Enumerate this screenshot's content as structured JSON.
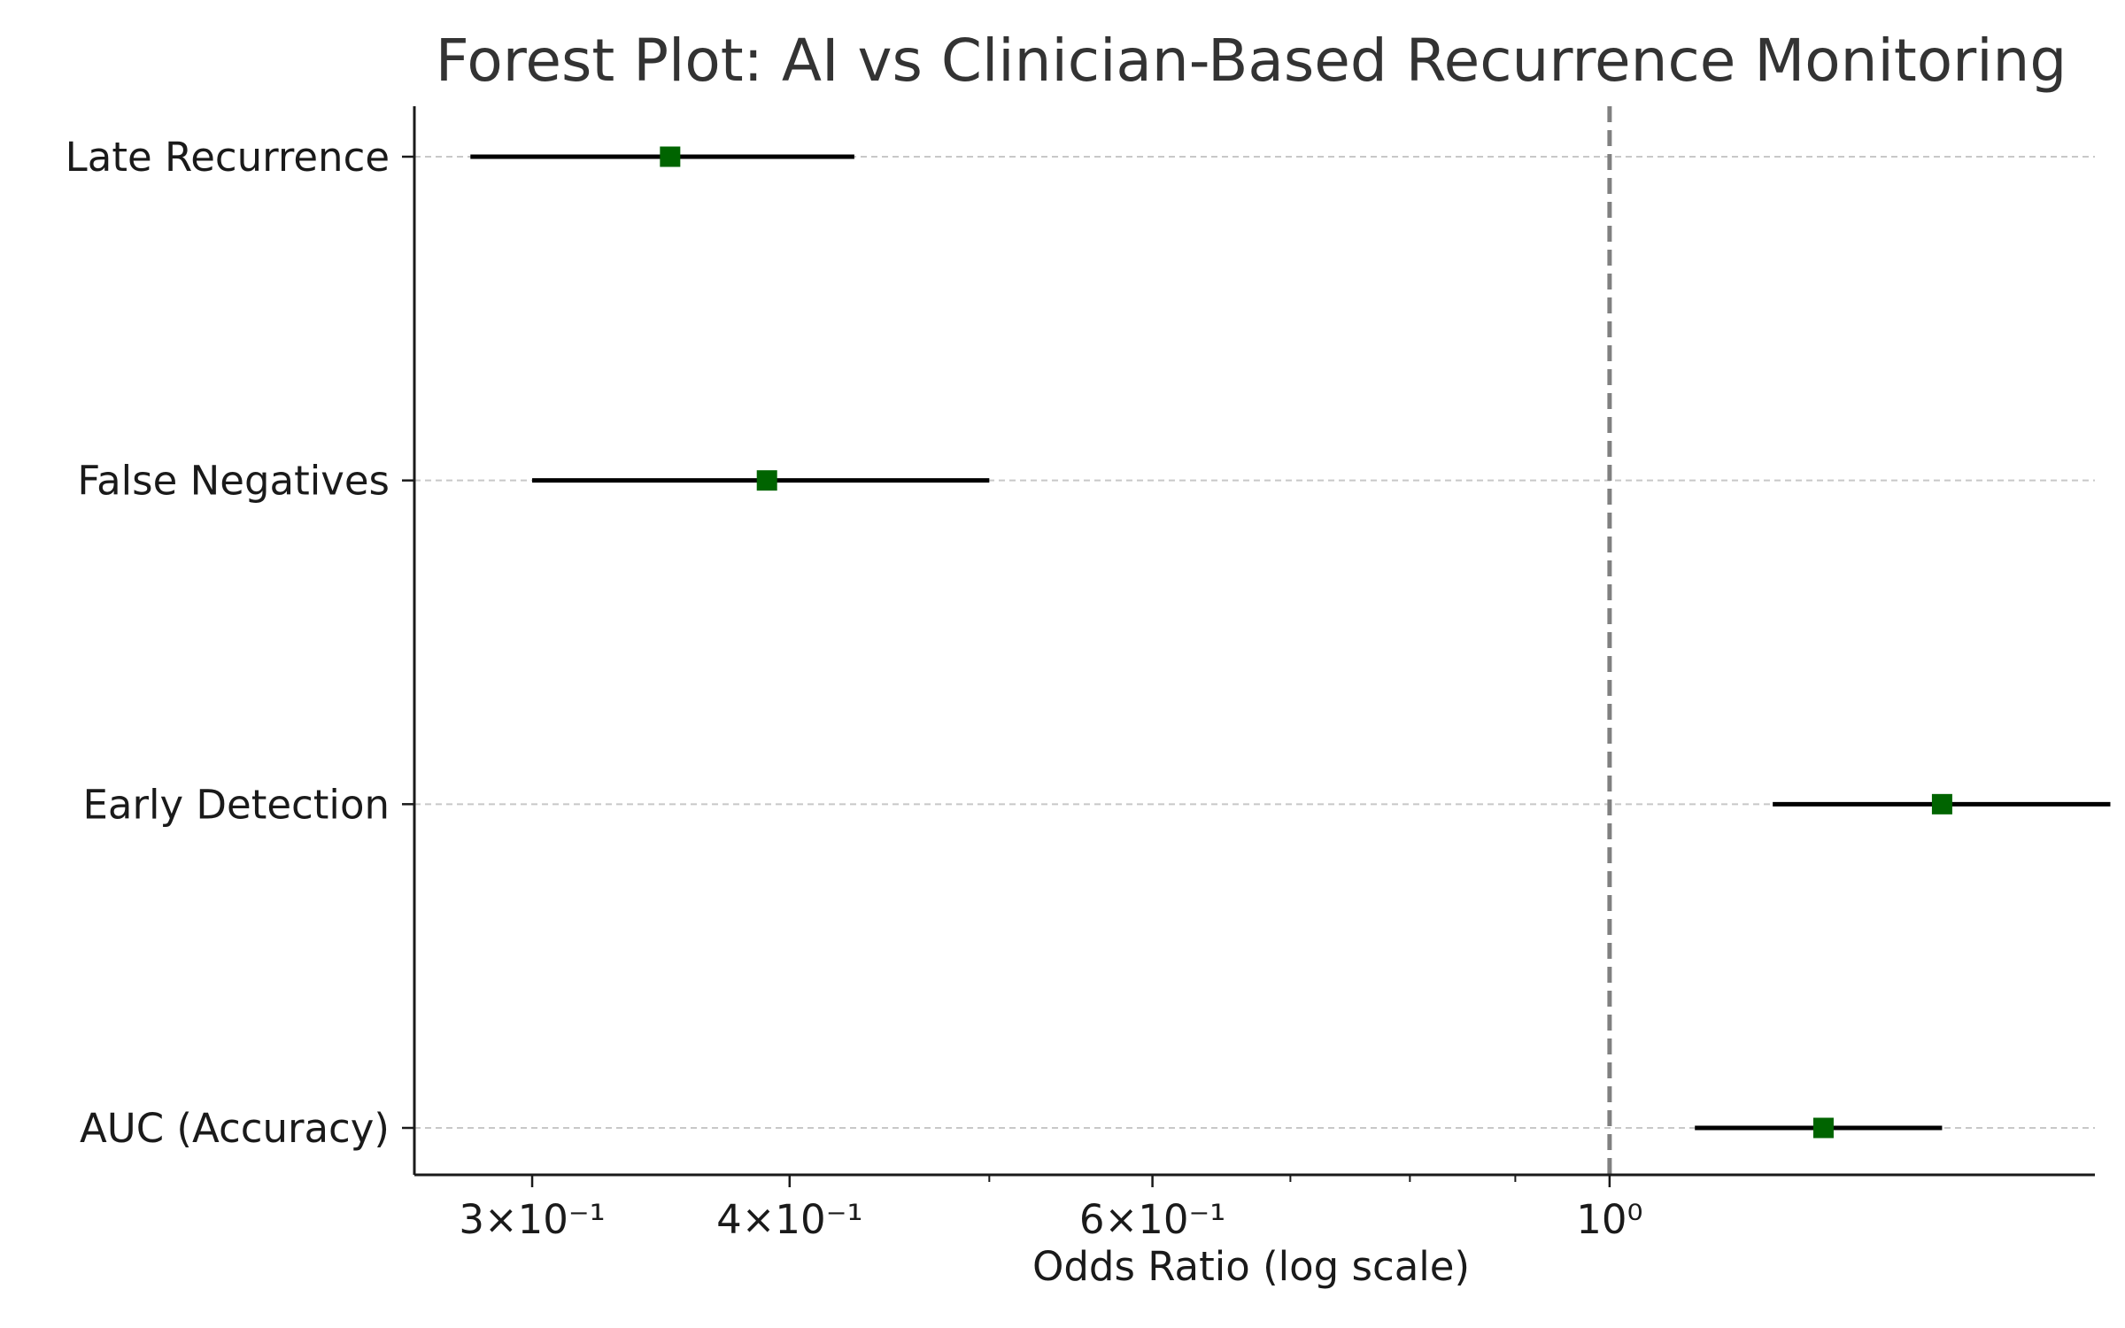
{
  "chart_data": {
    "type": "forest",
    "title": "Forest Plot: AI vs Clinician-Based Recurrence Monitoring",
    "xlabel": "Odds Ratio (log scale)",
    "ylabel": "",
    "x_scale": "log",
    "xlim": [
      0.263,
      1.72
    ],
    "reference_line": 1.0,
    "grid": "horizontal dashed",
    "marker_color": "#006400",
    "ci_color": "#000000",
    "reference_color": "#808080",
    "x_major_ticks": [
      {
        "value": 0.3,
        "label": "3×10⁻¹"
      },
      {
        "value": 0.4,
        "label": "4×10⁻¹"
      },
      {
        "value": 0.6,
        "label": "6×10⁻¹"
      },
      {
        "value": 1.0,
        "label": "10⁰"
      }
    ],
    "x_minor_ticks": [
      0.5,
      0.7,
      0.8,
      0.9
    ],
    "categories": [
      "Late Recurrence",
      "False Negatives",
      "Early Detection",
      "AUC (Accuracy)"
    ],
    "odds_ratio": [
      0.35,
      0.39,
      1.45,
      1.27
    ],
    "ci_lower": [
      0.28,
      0.3,
      1.2,
      1.1
    ],
    "ci_upper": [
      0.43,
      0.5,
      1.75,
      1.45
    ]
  }
}
